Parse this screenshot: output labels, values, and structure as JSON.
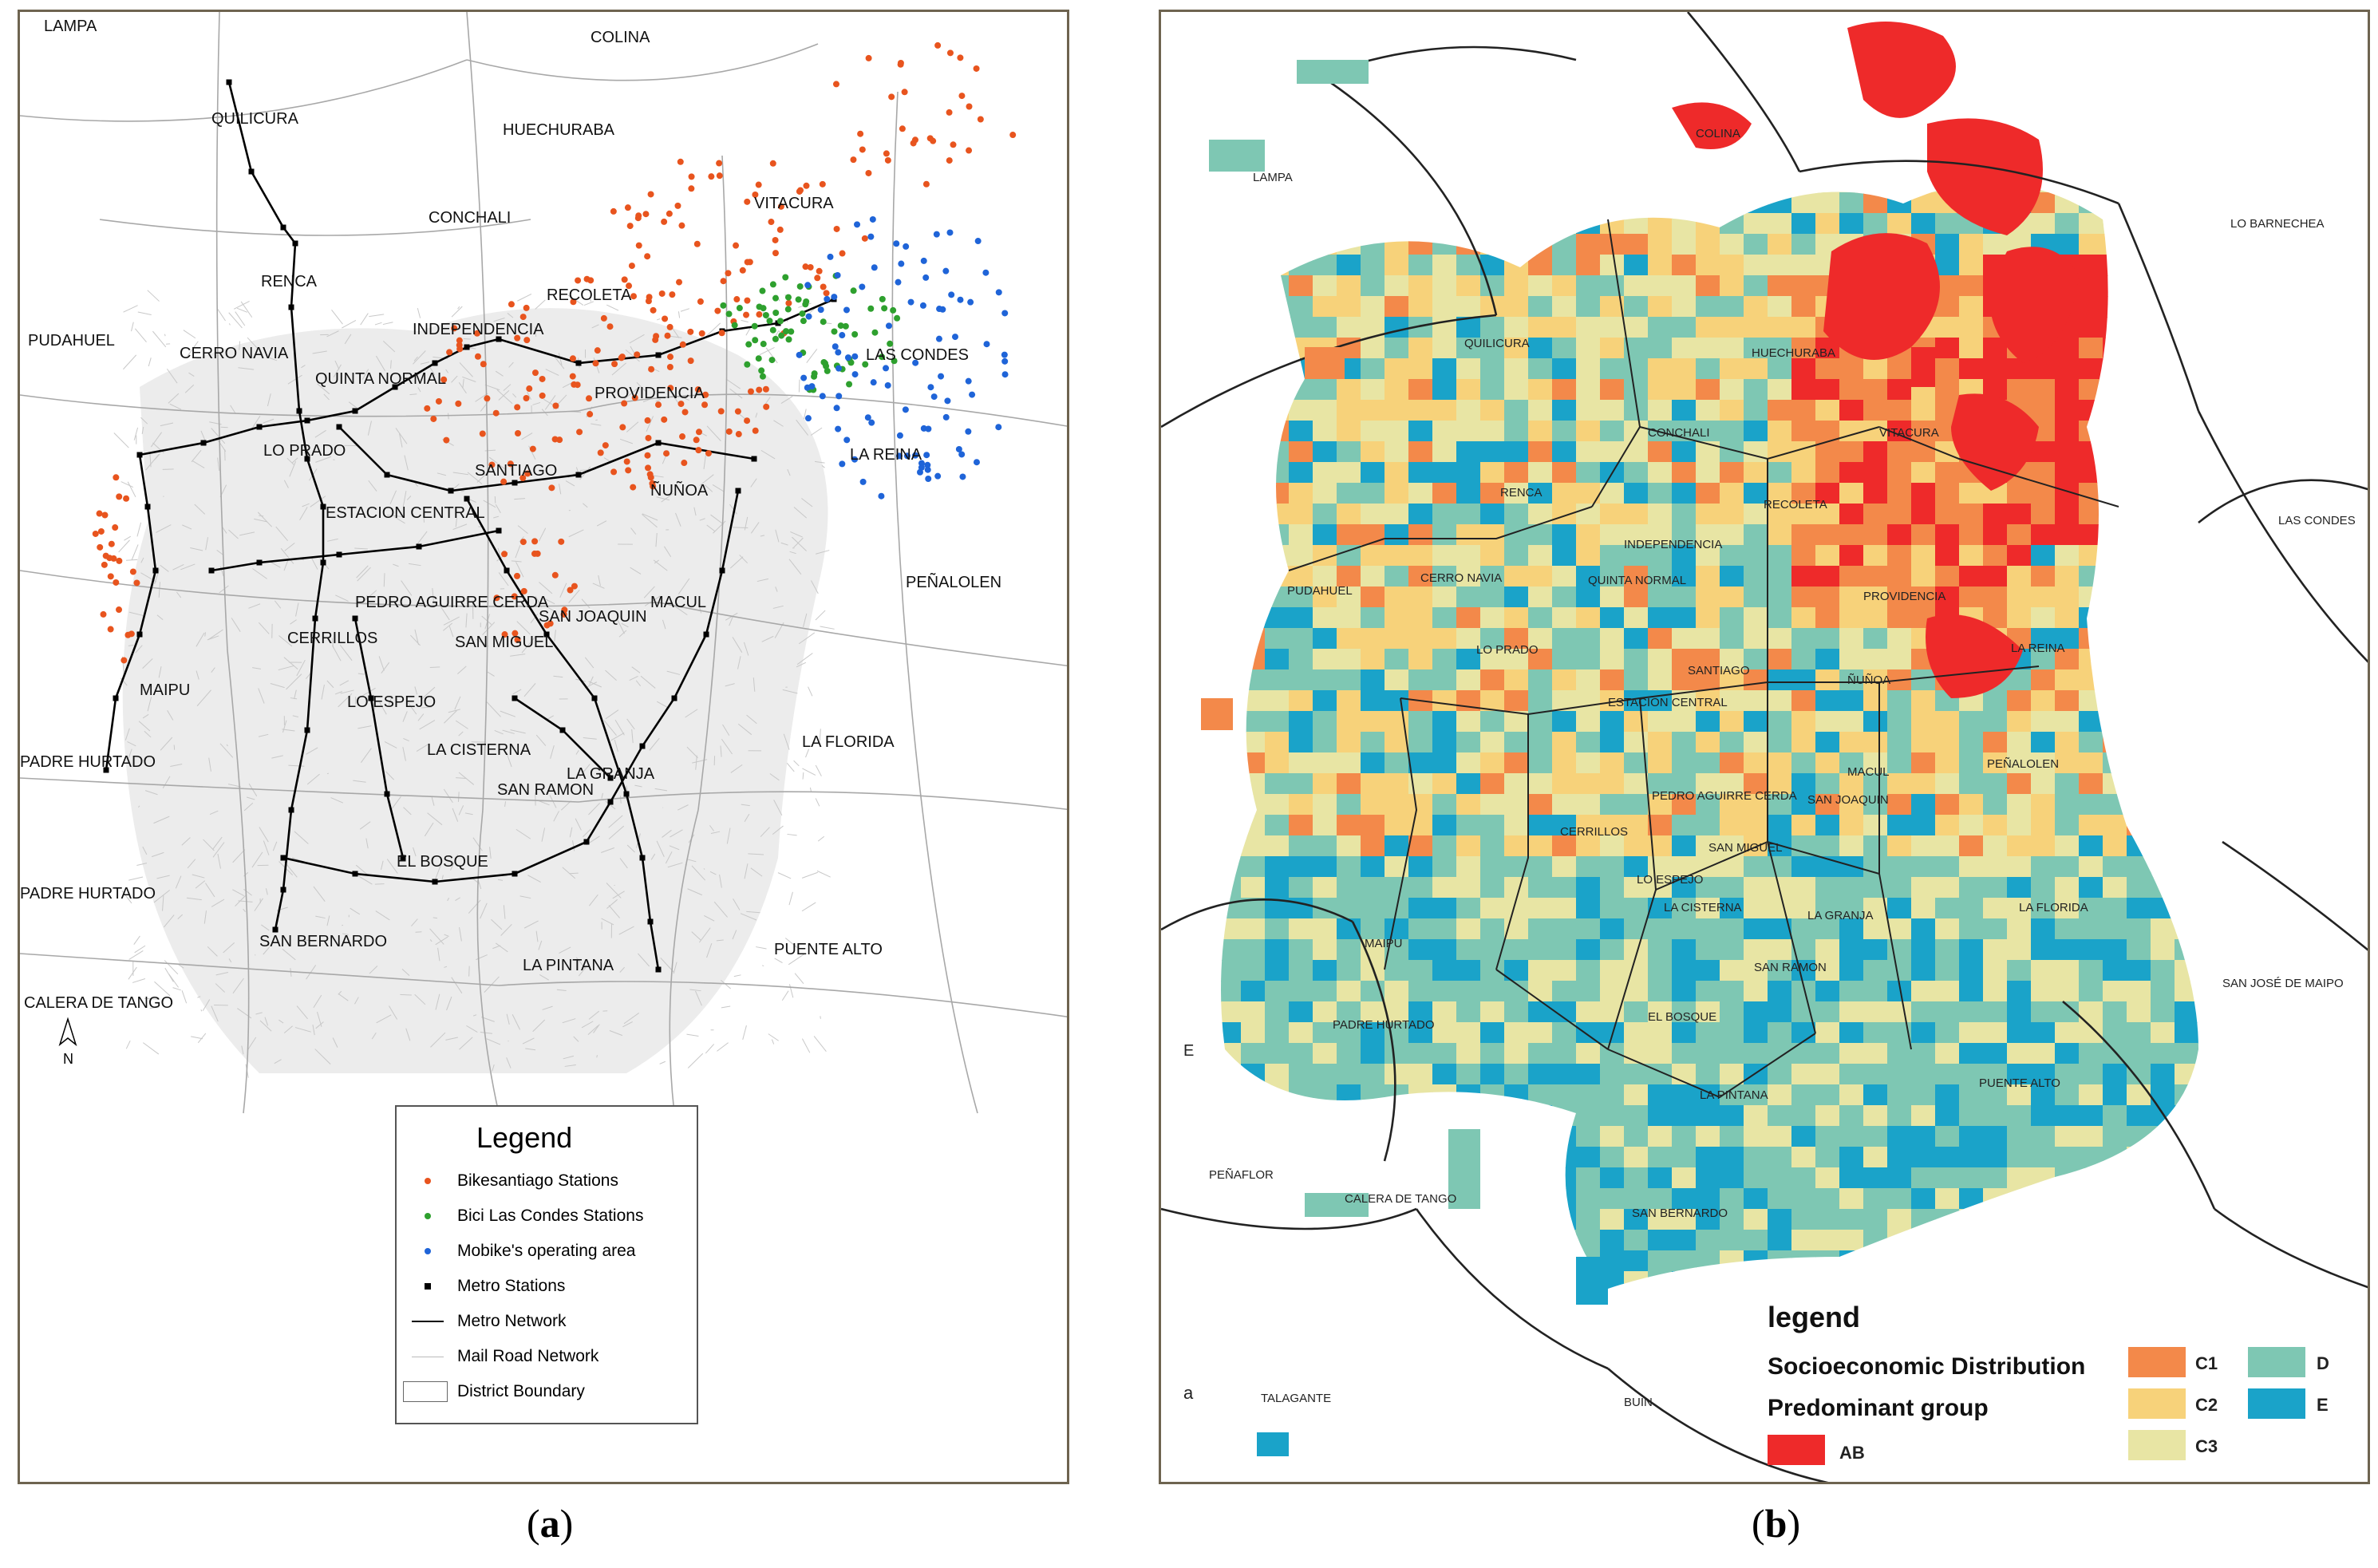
{
  "panel_a": {
    "place_labels": [
      "LAMPA",
      "COLINA",
      "QUILICURA",
      "HUECHURABA",
      "CONCHALI",
      "VITACURA",
      "RENCA",
      "RECOLETA",
      "PUDAHUEL",
      "INDEPENDENCIA",
      "CERRO NAVIA",
      "QUINTA NORMAL",
      "PROVIDENCIA",
      "LAS CONDES",
      "LO PRADO",
      "SANTIAGO",
      "LA REINA",
      "ÑUÑOA",
      "ESTACION CENTRAL",
      "PEÑALOLEN",
      "PEDRO AGUIRRE CERDA",
      "MACUL",
      "SAN JOAQUIN",
      "CERRILLOS",
      "SAN MIGUEL",
      "MAIPU",
      "LO ESPEJO",
      "LA CISTERNA",
      "LA FLORIDA",
      "PADRE HURTADO",
      "LA GRANJA",
      "SAN RAMON",
      "EL BOSQUE",
      "PADRE HURTADO",
      "SAN BERNARDO",
      "PUENTE ALTO",
      "LA PINTANA",
      "CALERA DE TANGO"
    ],
    "north_label": "N",
    "legend": {
      "title": "Legend",
      "items": [
        {
          "label": "Bikesantiago Stations",
          "color": "#e8541e"
        },
        {
          "label": "Bici Las Condes Stations",
          "color": "#2ea02e"
        },
        {
          "label": "Mobike's operating area",
          "color": "#1f64d8"
        },
        {
          "label": "Metro Stations",
          "color": "#000000"
        },
        {
          "label": "Metro Network",
          "color": "#000000"
        },
        {
          "label": "Mail Road Network",
          "color": "#bbbbbb"
        },
        {
          "label": "District Boundary",
          "color": "#666666"
        }
      ]
    },
    "caption": "a"
  },
  "panel_b": {
    "place_labels": [
      "COLINA",
      "LAMPA",
      "LO BARNECHEA",
      "QUILICURA",
      "HUECHURABA",
      "VITACURA",
      "CONCHALI",
      "RECOLETA",
      "RENCA",
      "LAS CONDES",
      "INDEPENDENCIA",
      "PUDAHUEL",
      "CERRO NAVIA",
      "QUINTA NORMAL",
      "PROVIDENCIA",
      "LO PRADO",
      "SANTIAGO",
      "LA REINA",
      "ÑUÑOA",
      "ESTACION CENTRAL",
      "MACUL",
      "PEÑALOLEN",
      "PEDRO AGUIRRE CERDA",
      "SAN JOAQUIN",
      "CERRILLOS",
      "SAN MIGUEL",
      "LO ESPEJO",
      "LA FLORIDA",
      "MAIPU",
      "LA CISTERNA",
      "LA GRANJA",
      "SAN RAMON",
      "SAN JOSÉ DE MAIPO",
      "PADRE HURTADO",
      "EL BOSQUE",
      "LA PINTANA",
      "PUENTE ALTO",
      "PEÑAFLOR",
      "CALERA DE TANGO",
      "SAN BERNARDO",
      "TALAGANTE",
      "BUIN"
    ],
    "legend": {
      "title": "legend",
      "subtitle": "Socioeconomic Distribution",
      "subtitle2": "Predominant group",
      "groups": [
        {
          "label": "AB",
          "color": "#ee2a2a"
        },
        {
          "label": "C1",
          "color": "#f3894a"
        },
        {
          "label": "C2",
          "color": "#f7d27a"
        },
        {
          "label": "C3",
          "color": "#e8e5a4"
        },
        {
          "label": "D",
          "color": "#7ec7b3"
        },
        {
          "label": "E",
          "color": "#1aa3c9"
        }
      ]
    },
    "edge_labels": [
      "E",
      "a"
    ],
    "caption": "b"
  }
}
